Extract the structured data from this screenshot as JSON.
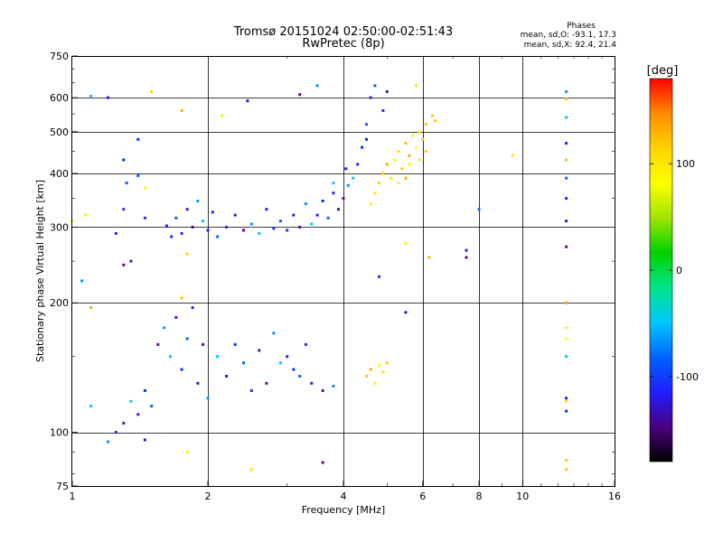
{
  "chart_data": {
    "type": "scatter",
    "title": "Tromsø 20151024 02:50:00-02:51:43",
    "subtitle": "RwPretec (8p)",
    "xlabel": "Frequency [MHz]",
    "ylabel": "Stationary phase Virtual Height [km]",
    "x_scale": "log",
    "y_scale": "log",
    "xlim": [
      1,
      16
    ],
    "ylim": [
      75,
      750
    ],
    "x_ticks": [
      {
        "v": 1,
        "label": "1"
      },
      {
        "v": 2,
        "label": "2"
      },
      {
        "v": 4,
        "label": "4"
      },
      {
        "v": 6,
        "label": "6"
      },
      {
        "v": 8,
        "label": "8"
      },
      {
        "v": 10,
        "label": "10"
      },
      {
        "v": 16,
        "label": "16"
      }
    ],
    "x_grid": [
      2,
      4,
      6,
      8,
      10
    ],
    "y_ticks": [
      {
        "v": 75,
        "label": "75"
      },
      {
        "v": 100,
        "label": "100"
      },
      {
        "v": 200,
        "label": "200"
      },
      {
        "v": 300,
        "label": "300"
      },
      {
        "v": 400,
        "label": "400"
      },
      {
        "v": 500,
        "label": "500"
      },
      {
        "v": 600,
        "label": "600"
      },
      {
        "v": 750,
        "label": "750"
      }
    ],
    "y_grid": [
      100,
      200,
      300,
      400,
      500,
      600
    ],
    "grid": true,
    "legend": {
      "title": "Phases",
      "lines": [
        "mean, sd,O: -93.1, 17.3",
        "mean, sd,X:  92.4, 21.4"
      ],
      "placement": "top-right"
    },
    "colorbar": {
      "label": "[deg]",
      "range": [
        -180,
        180
      ],
      "ticks": [
        {
          "v": 100,
          "label": "100"
        },
        {
          "v": 0,
          "label": "0"
        },
        {
          "v": -100,
          "label": "-100"
        }
      ],
      "colors": [
        "#000000",
        "#4b0082",
        "#1e1eff",
        "#0064ff",
        "#00c8ff",
        "#00e58c",
        "#00d200",
        "#9fe600",
        "#ffff00",
        "#ffd200",
        "#ff8c00",
        "#ff0000"
      ]
    },
    "series": [
      {
        "points": [
          [
            1.62,
            302
          ],
          [
            1.66,
            285
          ],
          [
            1.7,
            315
          ],
          [
            1.75,
            290
          ],
          [
            1.8,
            330
          ],
          [
            1.85,
            300
          ],
          [
            1.9,
            345
          ],
          [
            1.95,
            310
          ],
          [
            2.0,
            295
          ],
          [
            2.05,
            325
          ],
          [
            2.1,
            285
          ],
          [
            2.2,
            300
          ],
          [
            2.3,
            320
          ],
          [
            2.4,
            295
          ],
          [
            2.5,
            305
          ],
          [
            2.6,
            290
          ],
          [
            2.7,
            330
          ],
          [
            2.8,
            298
          ],
          [
            2.9,
            310
          ],
          [
            3.0,
            295
          ],
          [
            3.1,
            320
          ],
          [
            3.2,
            300
          ],
          [
            3.3,
            340
          ],
          [
            3.4,
            305
          ],
          [
            3.5,
            320
          ],
          [
            3.6,
            345
          ],
          [
            3.7,
            315
          ],
          [
            3.8,
            360
          ],
          [
            3.9,
            330
          ],
          [
            4.0,
            350
          ],
          [
            4.1,
            375
          ],
          [
            4.2,
            390
          ],
          [
            4.3,
            420
          ],
          [
            4.4,
            460
          ],
          [
            4.5,
            520
          ],
          [
            4.6,
            600
          ],
          [
            2.45,
            590
          ],
          [
            3.2,
            610
          ],
          [
            3.5,
            640
          ],
          [
            3.8,
            380
          ],
          [
            4.05,
            410
          ],
          [
            4.5,
            480
          ],
          [
            4.7,
            640
          ],
          [
            4.9,
            560
          ],
          [
            5.0,
            620
          ],
          [
            1.55,
            160
          ],
          [
            1.6,
            175
          ],
          [
            1.65,
            150
          ],
          [
            1.7,
            185
          ],
          [
            1.75,
            140
          ],
          [
            1.8,
            165
          ],
          [
            1.85,
            195
          ],
          [
            1.9,
            130
          ],
          [
            1.95,
            160
          ],
          [
            2.0,
            120
          ],
          [
            2.1,
            150
          ],
          [
            2.2,
            135
          ],
          [
            2.3,
            160
          ],
          [
            2.4,
            145
          ],
          [
            2.5,
            125
          ],
          [
            2.6,
            155
          ],
          [
            2.7,
            130
          ],
          [
            2.8,
            170
          ],
          [
            2.9,
            145
          ],
          [
            3.0,
            150
          ],
          [
            3.1,
            140
          ],
          [
            3.2,
            135
          ],
          [
            3.3,
            160
          ],
          [
            3.4,
            130
          ],
          [
            3.6,
            125
          ],
          [
            3.8,
            128
          ],
          [
            1.35,
            118
          ],
          [
            1.4,
            110
          ],
          [
            1.45,
            125
          ],
          [
            1.5,
            115
          ],
          [
            1.25,
            100
          ],
          [
            1.3,
            105
          ],
          [
            1.45,
            96
          ],
          [
            1.2,
            95
          ],
          [
            1.1,
            605
          ],
          [
            1.2,
            600
          ],
          [
            1.3,
            430
          ],
          [
            1.32,
            380
          ],
          [
            1.3,
            330
          ],
          [
            1.25,
            290
          ],
          [
            1.3,
            245
          ],
          [
            1.05,
            225
          ],
          [
            1.1,
            115
          ],
          [
            1.35,
            250
          ],
          [
            1.4,
            480
          ],
          [
            1.4,
            395
          ],
          [
            1.45,
            315
          ],
          [
            7.5,
            265
          ],
          [
            7.5,
            255
          ],
          [
            12.5,
            620
          ],
          [
            12.5,
            540
          ],
          [
            12.5,
            470
          ],
          [
            12.5,
            430
          ],
          [
            12.5,
            390
          ],
          [
            12.5,
            350
          ],
          [
            12.5,
            310
          ],
          [
            12.5,
            270
          ],
          [
            12.5,
            200
          ],
          [
            12.5,
            150
          ],
          [
            12.5,
            120
          ],
          [
            12.5,
            112
          ],
          [
            8.0,
            330
          ],
          [
            4.8,
            230
          ],
          [
            5.5,
            190
          ],
          [
            3.6,
            85
          ]
        ]
      },
      {
        "points": [
          [
            4.6,
            340
          ],
          [
            4.7,
            360
          ],
          [
            4.8,
            380
          ],
          [
            4.9,
            400
          ],
          [
            5.0,
            420
          ],
          [
            5.1,
            390
          ],
          [
            5.2,
            430
          ],
          [
            5.3,
            450
          ],
          [
            5.4,
            410
          ],
          [
            5.5,
            470
          ],
          [
            5.6,
            440
          ],
          [
            5.7,
            490
          ],
          [
            5.8,
            460
          ],
          [
            5.9,
            500
          ],
          [
            6.0,
            480
          ],
          [
            6.1,
            520
          ],
          [
            5.5,
            390
          ],
          [
            5.3,
            380
          ],
          [
            5.6,
            420
          ],
          [
            5.9,
            430
          ],
          [
            6.1,
            450
          ],
          [
            4.5,
            135
          ],
          [
            4.6,
            140
          ],
          [
            4.7,
            130
          ],
          [
            4.8,
            143
          ],
          [
            4.9,
            138
          ],
          [
            5.0,
            145
          ],
          [
            1.5,
            620
          ],
          [
            1.75,
            560
          ],
          [
            2.15,
            545
          ],
          [
            1.8,
            90
          ],
          [
            2.5,
            82
          ],
          [
            1.8,
            260
          ],
          [
            1.75,
            205
          ],
          [
            1.1,
            195
          ],
          [
            1.07,
            320
          ],
          [
            1.0,
            310
          ],
          [
            9.5,
            440
          ],
          [
            12.5,
            595
          ],
          [
            12.5,
            430
          ],
          [
            12.5,
            200
          ],
          [
            12.5,
            175
          ],
          [
            12.5,
            165
          ],
          [
            12.5,
            118
          ],
          [
            12.5,
            86
          ],
          [
            12.5,
            82
          ],
          [
            6.2,
            255
          ],
          [
            5.5,
            275
          ],
          [
            1.45,
            370
          ],
          [
            5.8,
            640
          ],
          [
            6.4,
            530
          ],
          [
            6.3,
            545
          ]
        ]
      }
    ]
  }
}
